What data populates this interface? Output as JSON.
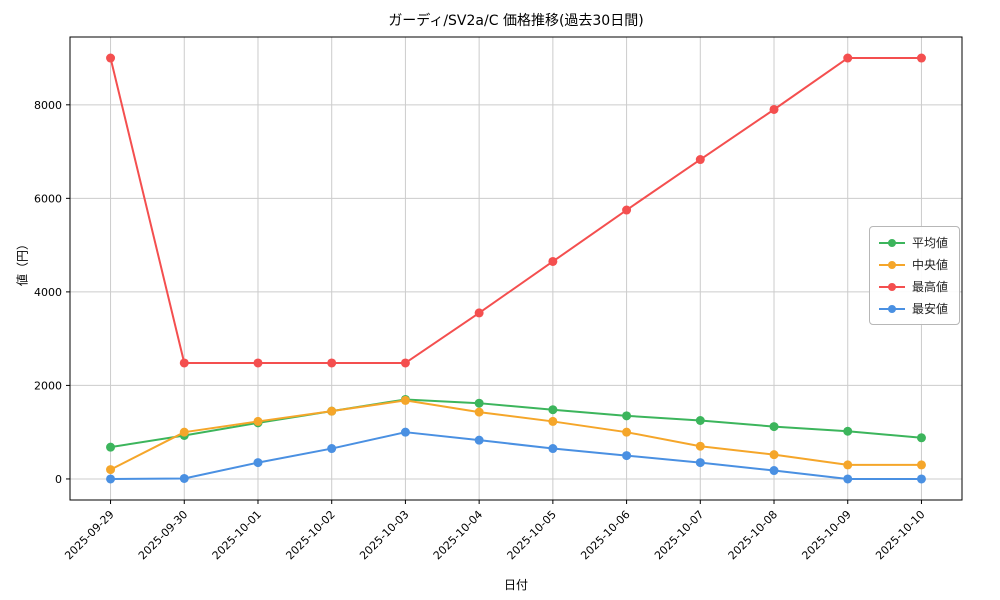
{
  "figure": {
    "background": "#ffffff",
    "grid_color": "#cccccc",
    "axis_color": "#000000"
  },
  "chart_data": {
    "type": "line",
    "title": "ガーディ/SV2a/C 価格推移(過去30日間)",
    "xlabel": "日付",
    "ylabel": "値（円）",
    "categories": [
      "2025-09-29",
      "2025-09-30",
      "2025-10-01",
      "2025-10-02",
      "2025-10-03",
      "2025-10-04",
      "2025-10-05",
      "2025-10-06",
      "2025-10-07",
      "2025-10-08",
      "2025-10-09",
      "2025-10-10"
    ],
    "series": [
      {
        "name": "平均値",
        "color": "#3cb55c",
        "values": [
          680,
          930,
          1200,
          1450,
          1700,
          1620,
          1480,
          1350,
          1250,
          1120,
          1020,
          880
        ]
      },
      {
        "name": "中央値",
        "color": "#f5a62a",
        "values": [
          200,
          1000,
          1230,
          1450,
          1680,
          1430,
          1230,
          1000,
          700,
          520,
          300,
          300
        ]
      },
      {
        "name": "最高値",
        "color": "#f44f4f",
        "values": [
          9000,
          2480,
          2480,
          2480,
          2480,
          3550,
          4650,
          5750,
          6830,
          7900,
          9000,
          9000
        ]
      },
      {
        "name": "最安値",
        "color": "#4a90e2",
        "values": [
          0,
          10,
          350,
          650,
          1000,
          830,
          650,
          500,
          350,
          180,
          0,
          0
        ]
      }
    ],
    "yticks": [
      0,
      2000,
      4000,
      6000,
      8000
    ],
    "ylim": [
      -450,
      9450
    ],
    "grid": true,
    "legend_position": "center right"
  }
}
